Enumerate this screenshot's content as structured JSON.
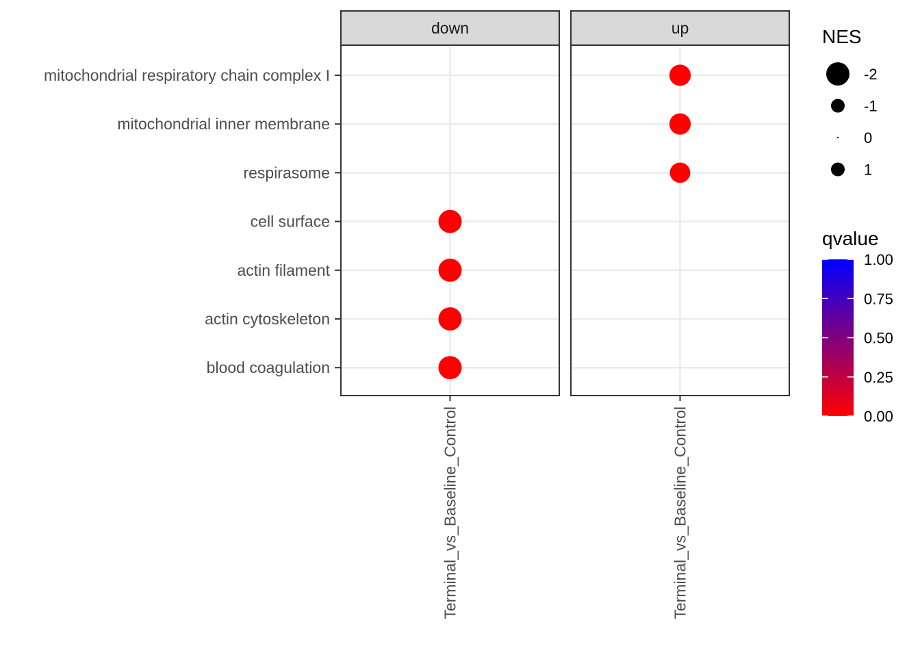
{
  "chart_data": {
    "type": "scatter",
    "facets": [
      "down",
      "up"
    ],
    "x_categories": [
      "Terminal_vs_Baseline_Control"
    ],
    "y_categories": [
      "mitochondrial respiratory chain complex I",
      "mitochondrial inner membrane",
      "respirasome",
      "cell surface",
      "actin filament",
      "actin cytoskeleton",
      "blood coagulation"
    ],
    "points": [
      {
        "facet": "down",
        "x": "Terminal_vs_Baseline_Control",
        "y": "cell surface",
        "NES": -2,
        "qvalue": 0.0
      },
      {
        "facet": "down",
        "x": "Terminal_vs_Baseline_Control",
        "y": "actin filament",
        "NES": -2,
        "qvalue": 0.0
      },
      {
        "facet": "down",
        "x": "Terminal_vs_Baseline_Control",
        "y": "actin cytoskeleton",
        "NES": -2,
        "qvalue": 0.0
      },
      {
        "facet": "down",
        "x": "Terminal_vs_Baseline_Control",
        "y": "blood coagulation",
        "NES": -2,
        "qvalue": 0.0
      },
      {
        "facet": "up",
        "x": "Terminal_vs_Baseline_Control",
        "y": "mitochondrial respiratory chain complex I",
        "NES": 1.8,
        "qvalue": 0.0
      },
      {
        "facet": "up",
        "x": "Terminal_vs_Baseline_Control",
        "y": "mitochondrial inner membrane",
        "NES": 1.8,
        "qvalue": 0.0
      },
      {
        "facet": "up",
        "x": "Terminal_vs_Baseline_Control",
        "y": "respirasome",
        "NES": 1.7,
        "qvalue": 0.0
      }
    ],
    "size_legend": {
      "title": "NES",
      "breaks": [
        -2,
        -1,
        0,
        1
      ],
      "labels": [
        "-2",
        "-1",
        "0",
        "1"
      ]
    },
    "color_legend": {
      "title": "qvalue",
      "range": [
        0.0,
        1.0
      ],
      "breaks": [
        "0.00",
        "0.25",
        "0.50",
        "0.75",
        "1.00"
      ],
      "low_color": "#FF0000",
      "high_color": "#0000FF"
    },
    "grid": true,
    "legend_position": "right"
  }
}
